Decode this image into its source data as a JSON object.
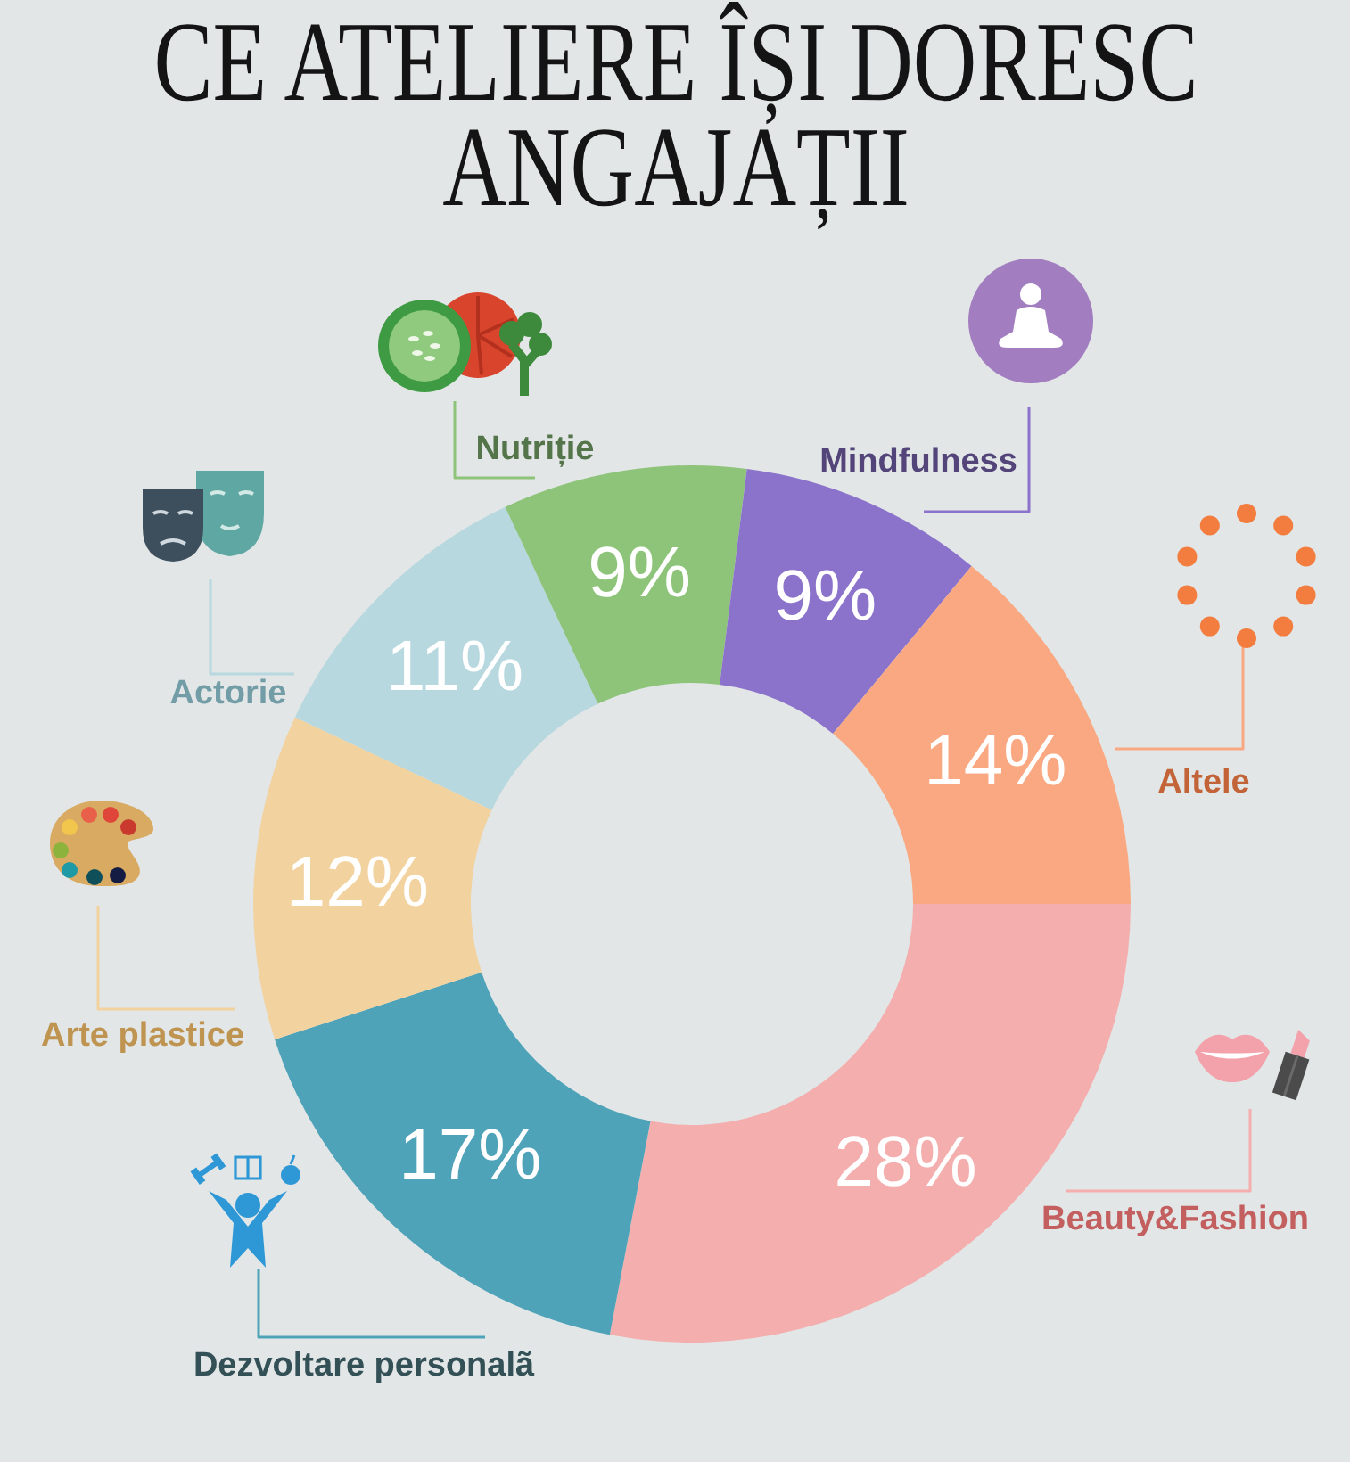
{
  "chart_data": {
    "type": "donut",
    "title": "CE ATELIERE ÎȘI DORESC ANGAJAȚII",
    "categories": [
      "Beauty&Fashion",
      "Dezvoltare personalã",
      "Arte plastice",
      "Actorie",
      "Nutriție",
      "Mindfulness",
      "Altele"
    ],
    "values": [
      28,
      17,
      12,
      11,
      9,
      9,
      14
    ],
    "colors": [
      "#f4aeae",
      "#4ea3b9",
      "#f2d29e",
      "#b7d8df",
      "#8ec47a",
      "#8b72cb",
      "#f9a882"
    ],
    "value_labels": [
      "28%",
      "17%",
      "12%",
      "11%",
      "9%",
      "9%",
      "14%"
    ]
  }
}
